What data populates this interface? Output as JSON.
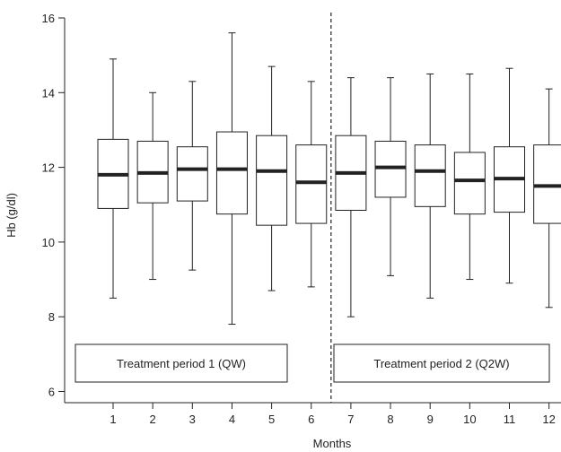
{
  "chart_data": {
    "type": "box",
    "title": "",
    "xlabel": "Months",
    "ylabel": "Hb (g/dl)",
    "ylim": [
      5.7,
      16
    ],
    "xlim": [
      0.2,
      12.3
    ],
    "y_ticks": [
      "6",
      "8",
      "10",
      "12",
      "14",
      "16"
    ],
    "x_ticks": [
      "1",
      "2",
      "3",
      "4",
      "5",
      "6",
      "7",
      "8",
      "9",
      "10",
      "11",
      "12"
    ],
    "grid": false,
    "divider_between_months": [
      6,
      7
    ],
    "periods": [
      {
        "label": "Treatment period 1 (QW)",
        "months": [
          1,
          6
        ]
      },
      {
        "label": "Treatment period 2 (Q2W)",
        "months": [
          7,
          12
        ]
      }
    ],
    "boxes": [
      {
        "month": 1,
        "whisker_low": 8.5,
        "q1": 10.9,
        "median": 11.8,
        "q3": 12.75,
        "whisker_high": 14.9
      },
      {
        "month": 2,
        "whisker_low": 9.0,
        "q1": 11.05,
        "median": 11.85,
        "q3": 12.7,
        "whisker_high": 14.0
      },
      {
        "month": 3,
        "whisker_low": 9.25,
        "q1": 11.1,
        "median": 11.95,
        "q3": 12.55,
        "whisker_high": 14.3
      },
      {
        "month": 4,
        "whisker_low": 7.8,
        "q1": 10.75,
        "median": 11.95,
        "q3": 12.95,
        "whisker_high": 15.6
      },
      {
        "month": 5,
        "whisker_low": 8.7,
        "q1": 10.45,
        "median": 11.9,
        "q3": 12.85,
        "whisker_high": 14.7
      },
      {
        "month": 6,
        "whisker_low": 8.8,
        "q1": 10.5,
        "median": 11.6,
        "q3": 12.6,
        "whisker_high": 14.3
      },
      {
        "month": 7,
        "whisker_low": 8.0,
        "q1": 10.85,
        "median": 11.85,
        "q3": 12.85,
        "whisker_high": 14.4
      },
      {
        "month": 8,
        "whisker_low": 9.1,
        "q1": 11.2,
        "median": 12.0,
        "q3": 12.7,
        "whisker_high": 14.4
      },
      {
        "month": 9,
        "whisker_low": 8.5,
        "q1": 10.95,
        "median": 11.9,
        "q3": 12.6,
        "whisker_high": 14.5
      },
      {
        "month": 10,
        "whisker_low": 9.0,
        "q1": 10.75,
        "median": 11.65,
        "q3": 12.4,
        "whisker_high": 14.5
      },
      {
        "month": 11,
        "whisker_low": 8.9,
        "q1": 10.8,
        "median": 11.7,
        "q3": 12.55,
        "whisker_high": 14.65
      },
      {
        "month": 12,
        "whisker_low": 8.25,
        "q1": 10.5,
        "median": 11.5,
        "q3": 12.6,
        "whisker_high": 14.1
      }
    ],
    "colors": {
      "line": "#222222",
      "box_fill": "#ffffff",
      "median": "#222222"
    }
  }
}
